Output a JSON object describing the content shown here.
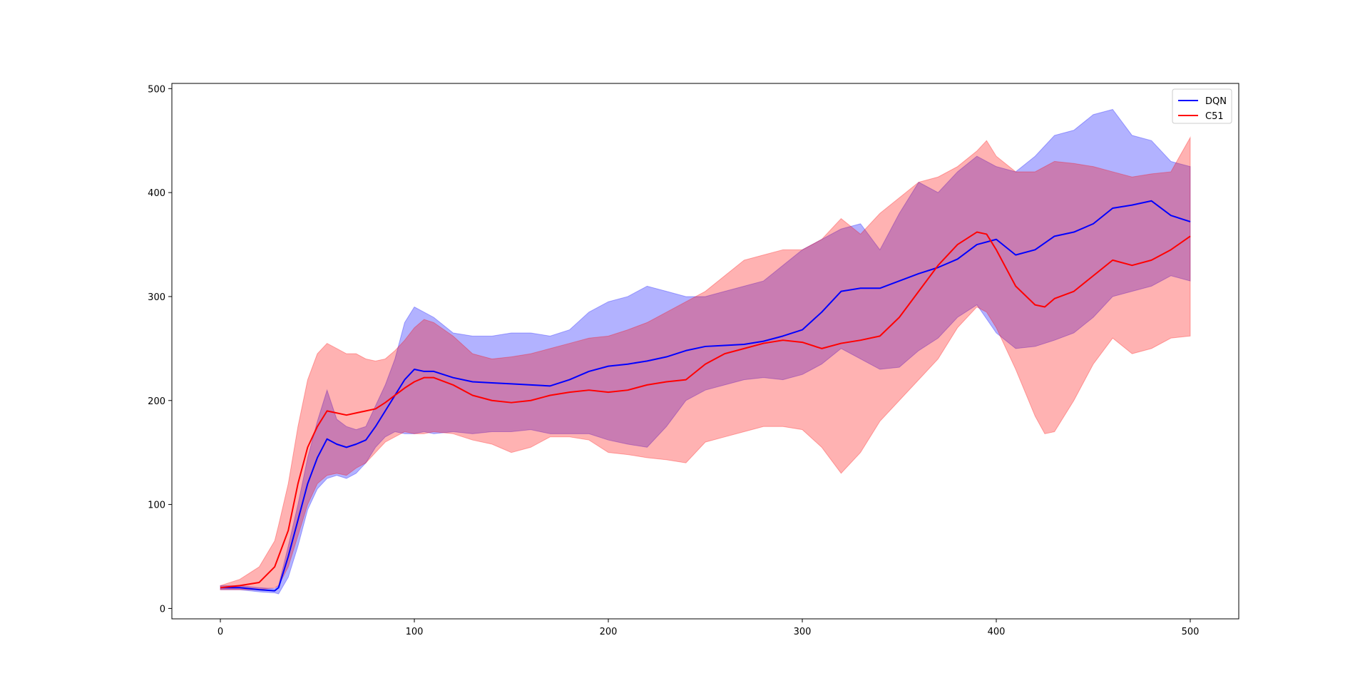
{
  "chart_data": {
    "type": "line",
    "title": "",
    "xlabel": "",
    "ylabel": "",
    "xlim": [
      -25,
      525
    ],
    "ylim": [
      -10,
      505
    ],
    "xticks": [
      0,
      100,
      200,
      300,
      400,
      500
    ],
    "yticks": [
      0,
      100,
      200,
      300,
      400,
      500
    ],
    "grid": false,
    "legend_position": "top-right",
    "series": [
      {
        "name": "DQN",
        "color": "#0000ff",
        "band_color": "#0000ff",
        "x": [
          0,
          10,
          20,
          28,
          30,
          35,
          40,
          45,
          50,
          55,
          60,
          65,
          70,
          75,
          80,
          85,
          90,
          95,
          100,
          105,
          110,
          120,
          130,
          140,
          150,
          160,
          170,
          180,
          190,
          200,
          210,
          220,
          230,
          240,
          250,
          260,
          270,
          280,
          290,
          300,
          310,
          320,
          330,
          340,
          350,
          360,
          370,
          380,
          390,
          400,
          410,
          420,
          430,
          440,
          450,
          460,
          470,
          480,
          490,
          500
        ],
        "mean": [
          20,
          20,
          18,
          17,
          20,
          50,
          85,
          120,
          145,
          163,
          158,
          155,
          158,
          162,
          175,
          190,
          205,
          220,
          230,
          228,
          228,
          222,
          218,
          217,
          216,
          215,
          214,
          220,
          228,
          233,
          235,
          238,
          242,
          248,
          252,
          253,
          254,
          257,
          262,
          268,
          285,
          305,
          308,
          308,
          315,
          322,
          328,
          336,
          350,
          355,
          340,
          345,
          358,
          362,
          370,
          385,
          388,
          392,
          378,
          372
        ],
        "upper": [
          22,
          22,
          20,
          19,
          22,
          60,
          100,
          145,
          180,
          210,
          182,
          175,
          172,
          175,
          195,
          215,
          240,
          275,
          290,
          285,
          280,
          265,
          262,
          262,
          265,
          265,
          262,
          268,
          285,
          295,
          300,
          310,
          305,
          300,
          300,
          305,
          310,
          315,
          330,
          345,
          355,
          365,
          370,
          345,
          380,
          410,
          400,
          420,
          435,
          425,
          420,
          435,
          455,
          460,
          475,
          480,
          455,
          450,
          430,
          425
        ],
        "lower": [
          18,
          18,
          16,
          15,
          14,
          30,
          60,
          95,
          115,
          125,
          128,
          125,
          130,
          140,
          155,
          165,
          170,
          168,
          168,
          170,
          168,
          170,
          168,
          170,
          170,
          172,
          168,
          168,
          168,
          162,
          158,
          155,
          175,
          200,
          210,
          215,
          220,
          222,
          220,
          225,
          235,
          250,
          240,
          230,
          232,
          248,
          260,
          280,
          292,
          265,
          250,
          252,
          258,
          265,
          280,
          300,
          305,
          310,
          320,
          315
        ]
      },
      {
        "name": "C51",
        "color": "#ff0000",
        "band_color": "#ff0000",
        "x": [
          0,
          10,
          20,
          28,
          30,
          35,
          40,
          45,
          50,
          55,
          60,
          65,
          70,
          75,
          80,
          85,
          90,
          95,
          100,
          105,
          110,
          120,
          130,
          140,
          150,
          160,
          170,
          180,
          190,
          200,
          210,
          220,
          230,
          240,
          250,
          260,
          270,
          280,
          290,
          300,
          310,
          320,
          330,
          340,
          350,
          360,
          370,
          380,
          390,
          395,
          400,
          410,
          420,
          425,
          430,
          440,
          450,
          460,
          470,
          480,
          490,
          500
        ],
        "mean": [
          20,
          22,
          25,
          40,
          50,
          75,
          120,
          155,
          175,
          190,
          188,
          186,
          188,
          190,
          192,
          198,
          205,
          212,
          218,
          222,
          222,
          215,
          205,
          200,
          198,
          200,
          205,
          208,
          210,
          208,
          210,
          215,
          218,
          220,
          235,
          245,
          250,
          255,
          258,
          256,
          250,
          255,
          258,
          262,
          280,
          305,
          330,
          350,
          362,
          360,
          345,
          310,
          292,
          290,
          298,
          305,
          320,
          335,
          330,
          335,
          345,
          358
        ],
        "upper": [
          22,
          28,
          40,
          65,
          80,
          120,
          175,
          220,
          245,
          255,
          250,
          245,
          245,
          240,
          238,
          240,
          248,
          258,
          270,
          278,
          275,
          262,
          245,
          240,
          242,
          245,
          250,
          255,
          260,
          262,
          268,
          275,
          285,
          295,
          305,
          320,
          335,
          340,
          345,
          345,
          355,
          375,
          360,
          380,
          395,
          410,
          415,
          425,
          440,
          450,
          435,
          420,
          420,
          425,
          430,
          428,
          425,
          420,
          415,
          418,
          420,
          453
        ],
        "lower": [
          18,
          18,
          18,
          20,
          22,
          40,
          70,
          100,
          120,
          128,
          130,
          128,
          135,
          140,
          150,
          160,
          165,
          170,
          168,
          168,
          170,
          168,
          162,
          158,
          150,
          155,
          165,
          165,
          162,
          150,
          148,
          145,
          143,
          140,
          160,
          165,
          170,
          175,
          175,
          172,
          155,
          130,
          150,
          180,
          200,
          220,
          240,
          270,
          290,
          285,
          270,
          230,
          185,
          168,
          170,
          200,
          235,
          260,
          245,
          250,
          260,
          262
        ]
      }
    ]
  }
}
